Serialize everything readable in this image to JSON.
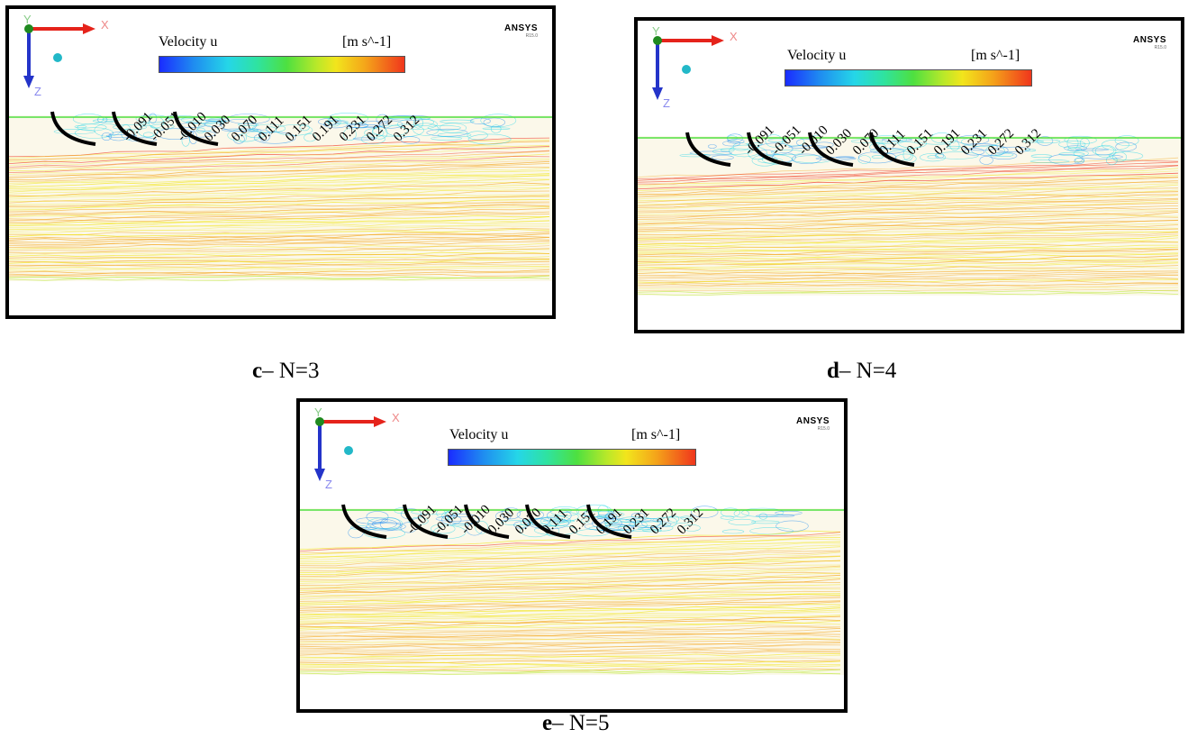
{
  "legend": {
    "title": "Velocity u",
    "unit": "[m s^-1]",
    "ticks": [
      "-0.091",
      "-0.051",
      "-0.010",
      "0.030",
      "0.070",
      "0.111",
      "0.151",
      "0.191",
      "0.231",
      "0.272",
      "0.312"
    ],
    "colors": [
      "#1a2cff",
      "#1f8cf0",
      "#25d6e8",
      "#2fe3a0",
      "#4ee040",
      "#b7e82a",
      "#f2e51c",
      "#f4a51a",
      "#f0361c"
    ]
  },
  "axes": {
    "x": "X",
    "y": "Y",
    "z": "Z"
  },
  "brand": {
    "name": "ANSYS",
    "sub": "R15.0"
  },
  "panels": [
    {
      "id": "c",
      "caption_letter": "c",
      "caption_text": "– N=3",
      "blades": 3
    },
    {
      "id": "d",
      "caption_letter": "d",
      "caption_text": "– N=4",
      "blades": 4
    },
    {
      "id": "e",
      "caption_letter": "e",
      "caption_text": "– N=5",
      "blades": 5
    }
  ]
}
